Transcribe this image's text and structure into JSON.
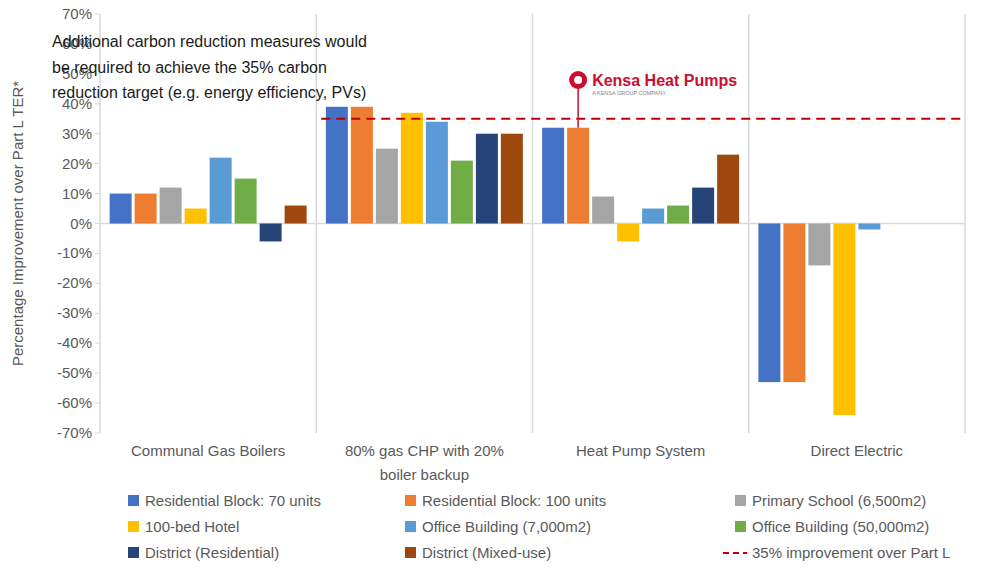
{
  "chart_data": {
    "type": "bar",
    "y_label": "Percentage Improvement over Part L TER*",
    "categories": [
      "Communal Gas Boilers",
      "80% gas CHP with 20% boiler backup",
      "Heat Pump System",
      "Direct Electric"
    ],
    "series": [
      {
        "name": "Residential Block: 70 units",
        "color": "#4472c4",
        "values": [
          10,
          39,
          32,
          -53
        ]
      },
      {
        "name": "Residential Block: 100 units",
        "color": "#ed7d31",
        "values": [
          10,
          39,
          32,
          -53
        ]
      },
      {
        "name": "Primary School (6,500m2)",
        "color": "#a5a5a5",
        "values": [
          12,
          25,
          9,
          -14
        ]
      },
      {
        "name": "100-bed Hotel",
        "color": "#ffc000",
        "values": [
          5,
          37,
          -6,
          -64
        ]
      },
      {
        "name": "Office Building (7,000m2)",
        "color": "#5b9bd5",
        "values": [
          22,
          34,
          5,
          -2
        ]
      },
      {
        "name": "Office Building (50,000m2)",
        "color": "#70ad47",
        "values": [
          15,
          21,
          6,
          null
        ]
      },
      {
        "name": "District (Residential)",
        "color": "#264478",
        "values": [
          -6,
          30,
          12,
          null
        ]
      },
      {
        "name": "District (Mixed-use)",
        "color": "#9e480e",
        "values": [
          6,
          30,
          23,
          null
        ]
      }
    ],
    "ylim": [
      -70,
      70
    ],
    "yticks": [
      {
        "value": -70,
        "label": "-70%"
      },
      {
        "value": -60,
        "label": "-60%"
      },
      {
        "value": -50,
        "label": "-50%"
      },
      {
        "value": -40,
        "label": "-40%"
      },
      {
        "value": -30,
        "label": "-30%"
      },
      {
        "value": -20,
        "label": "-20%"
      },
      {
        "value": -10,
        "label": "-10%"
      },
      {
        "value": 0,
        "label": "0%"
      },
      {
        "value": 10,
        "label": "10%"
      },
      {
        "value": 20,
        "label": "20%"
      },
      {
        "value": 30,
        "label": "30%"
      },
      {
        "value": 40,
        "label": "40%"
      },
      {
        "value": 50,
        "label": "50%"
      },
      {
        "value": 60,
        "label": "60%"
      },
      {
        "value": 70,
        "label": "70%"
      }
    ],
    "grid": false,
    "legend": "bottom",
    "reference_line": {
      "value": 35,
      "label": "35% improvement over Part L",
      "color": "#c00000",
      "line_style": "dashed"
    },
    "annotations": [
      {
        "lines": [
          "Additional carbon reduction measures would",
          "be required to achieve the 35% carbon",
          "reduction target (e.g. energy efficiency, PVs)"
        ]
      },
      {
        "lines": [
          "Kensa Heat Pumps",
          "A KENSA GROUP COMPANY"
        ]
      }
    ]
  }
}
